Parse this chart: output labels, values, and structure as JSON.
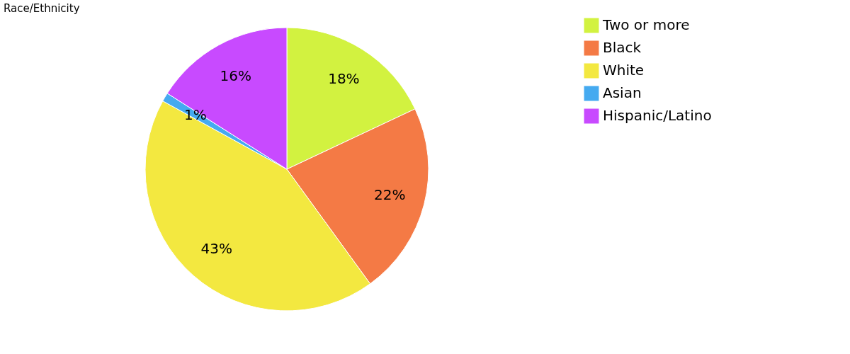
{
  "chart_data": {
    "type": "pie",
    "title": "Race/Ethnicity",
    "categories": [
      "Two or more",
      "Black",
      "White",
      "Asian",
      "Hispanic/Latino"
    ],
    "values": [
      18,
      22,
      43,
      1,
      16
    ],
    "colors": [
      "#d2f240",
      "#f47a45",
      "#f3e840",
      "#45aaf0",
      "#c84aff"
    ],
    "value_labels": [
      "18%",
      "22%",
      "43%",
      "1%",
      "16%"
    ],
    "legend": "right"
  }
}
